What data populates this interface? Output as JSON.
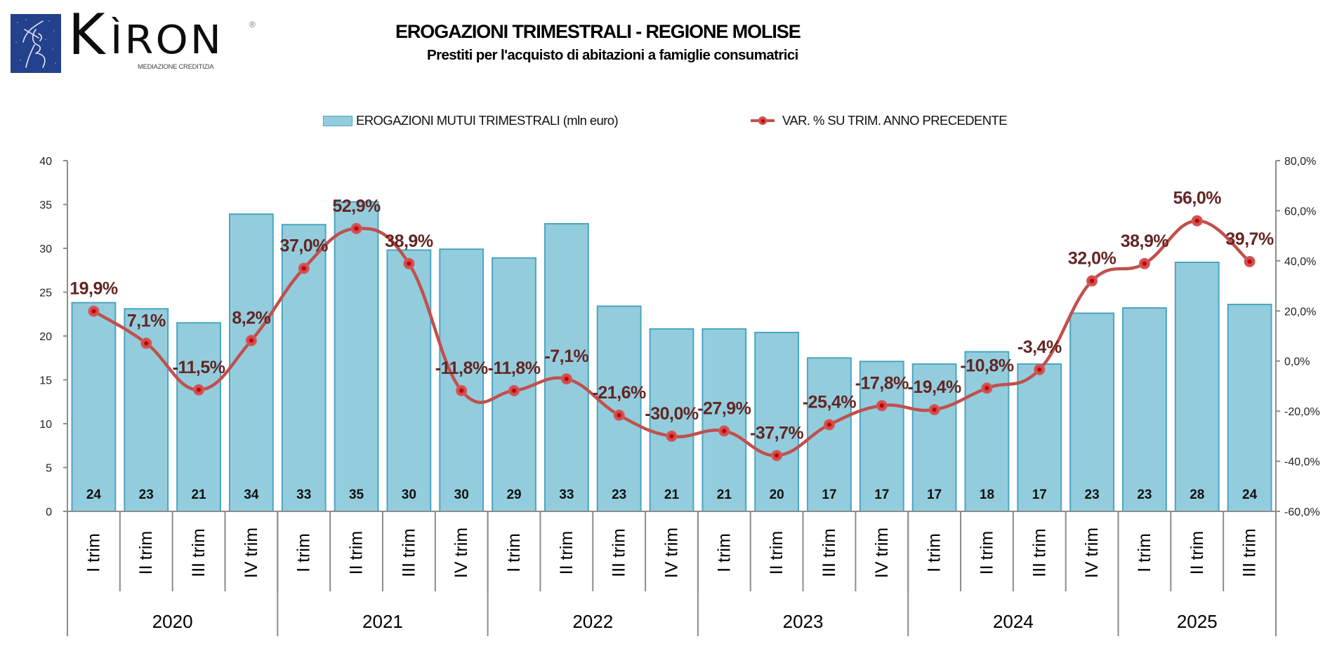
{
  "logo": {
    "brand_first": "K",
    "brand_rest": "ÌRON",
    "registered": "®",
    "tagline": "MEDIAZIONE CREDITIZIA"
  },
  "colors": {
    "bar_fill": "#93cddd",
    "bar_border": "#4aa5c0",
    "line": "#c0504d",
    "marker": "#c00000",
    "pct_label": "#632523",
    "axis": "#8c8c8c",
    "logo_bg": "#23418c"
  },
  "chart_data": {
    "type": "bar",
    "title": "EROGAZIONI TRIMESTRALI - REGIONE MOLISE",
    "subtitle": "Prestiti per l'acquisto di abitazioni a famiglie consumatrici",
    "xlabel": "",
    "ylabel": "",
    "legend": {
      "placement": "top-center",
      "bars": "EROGAZIONI MUTUI TRIMESTRALI (mln euro)",
      "line": "VAR. % SU TRIM. ANNO PRECEDENTE"
    },
    "grid": false,
    "categories": [
      "I trim",
      "II trim",
      "III trim",
      "IV trim",
      "I trim",
      "II trim",
      "III trim",
      "IV trim",
      "I trim",
      "II trim",
      "III trim",
      "IV trim",
      "I trim",
      "II trim",
      "III trim",
      "IV trim",
      "I trim",
      "II trim",
      "III trim",
      "IV trim",
      "I trim",
      "II trim",
      "III trim"
    ],
    "groups": [
      {
        "label": "2020",
        "count": 4
      },
      {
        "label": "2021",
        "count": 4
      },
      {
        "label": "2022",
        "count": 4
      },
      {
        "label": "2023",
        "count": 4
      },
      {
        "label": "2024",
        "count": 4
      },
      {
        "label": "2025",
        "count": 3
      }
    ],
    "y_left": {
      "ylim": [
        0,
        40
      ],
      "ticks": [
        0,
        5,
        10,
        15,
        20,
        25,
        30,
        35,
        40
      ],
      "tick_labels": [
        "0",
        "5",
        "10",
        "15",
        "20",
        "25",
        "30",
        "35",
        "40"
      ]
    },
    "y_right": {
      "ylim": [
        -60,
        80
      ],
      "ticks": [
        -60,
        -40,
        -20,
        0,
        20,
        40,
        60,
        80
      ],
      "tick_labels": [
        "-60,0%",
        "-40,0%",
        "-20,0%",
        "0,0%",
        "20,0%",
        "40,0%",
        "60,0%",
        "80,0%"
      ]
    },
    "series": [
      {
        "name": "EROGAZIONI MUTUI TRIMESTRALI (mln euro)",
        "type": "bar",
        "axis": "left",
        "values": [
          23.8,
          23.1,
          21.5,
          33.9,
          32.7,
          35.3,
          29.8,
          29.9,
          28.9,
          32.8,
          23.4,
          20.8,
          20.8,
          20.4,
          17.5,
          17.1,
          16.8,
          18.2,
          16.8,
          22.6,
          23.2,
          28.4,
          23.6
        ],
        "labels": [
          "24",
          "23",
          "21",
          "34",
          "33",
          "35",
          "30",
          "30",
          "29",
          "33",
          "23",
          "21",
          "21",
          "20",
          "17",
          "17",
          "17",
          "18",
          "17",
          "23",
          "23",
          "28",
          "24"
        ]
      },
      {
        "name": "VAR. % SU TRIM. ANNO PRECEDENTE",
        "type": "line",
        "axis": "right",
        "values": [
          19.9,
          7.1,
          -11.5,
          8.2,
          37.0,
          52.9,
          38.9,
          -11.8,
          -11.8,
          -7.1,
          -21.6,
          -30.0,
          -27.9,
          -37.7,
          -25.4,
          -17.8,
          -19.4,
          -10.8,
          -3.4,
          32.0,
          38.9,
          56.0,
          39.7
        ],
        "labels": [
          "19,9%",
          "7,1%",
          "-11,5%",
          "8,2%",
          "37,0%",
          "52,9%",
          "38,9%",
          "-11,8%",
          "-11,8%",
          "-7,1%",
          "-21,6%",
          "-30,0%",
          "-27,9%",
          "-37,7%",
          "-25,4%",
          "-17,8%",
          "-19,4%",
          "-10,8%",
          "-3,4%",
          "32,0%",
          "38,9%",
          "56,0%",
          "39,7%"
        ]
      }
    ]
  }
}
